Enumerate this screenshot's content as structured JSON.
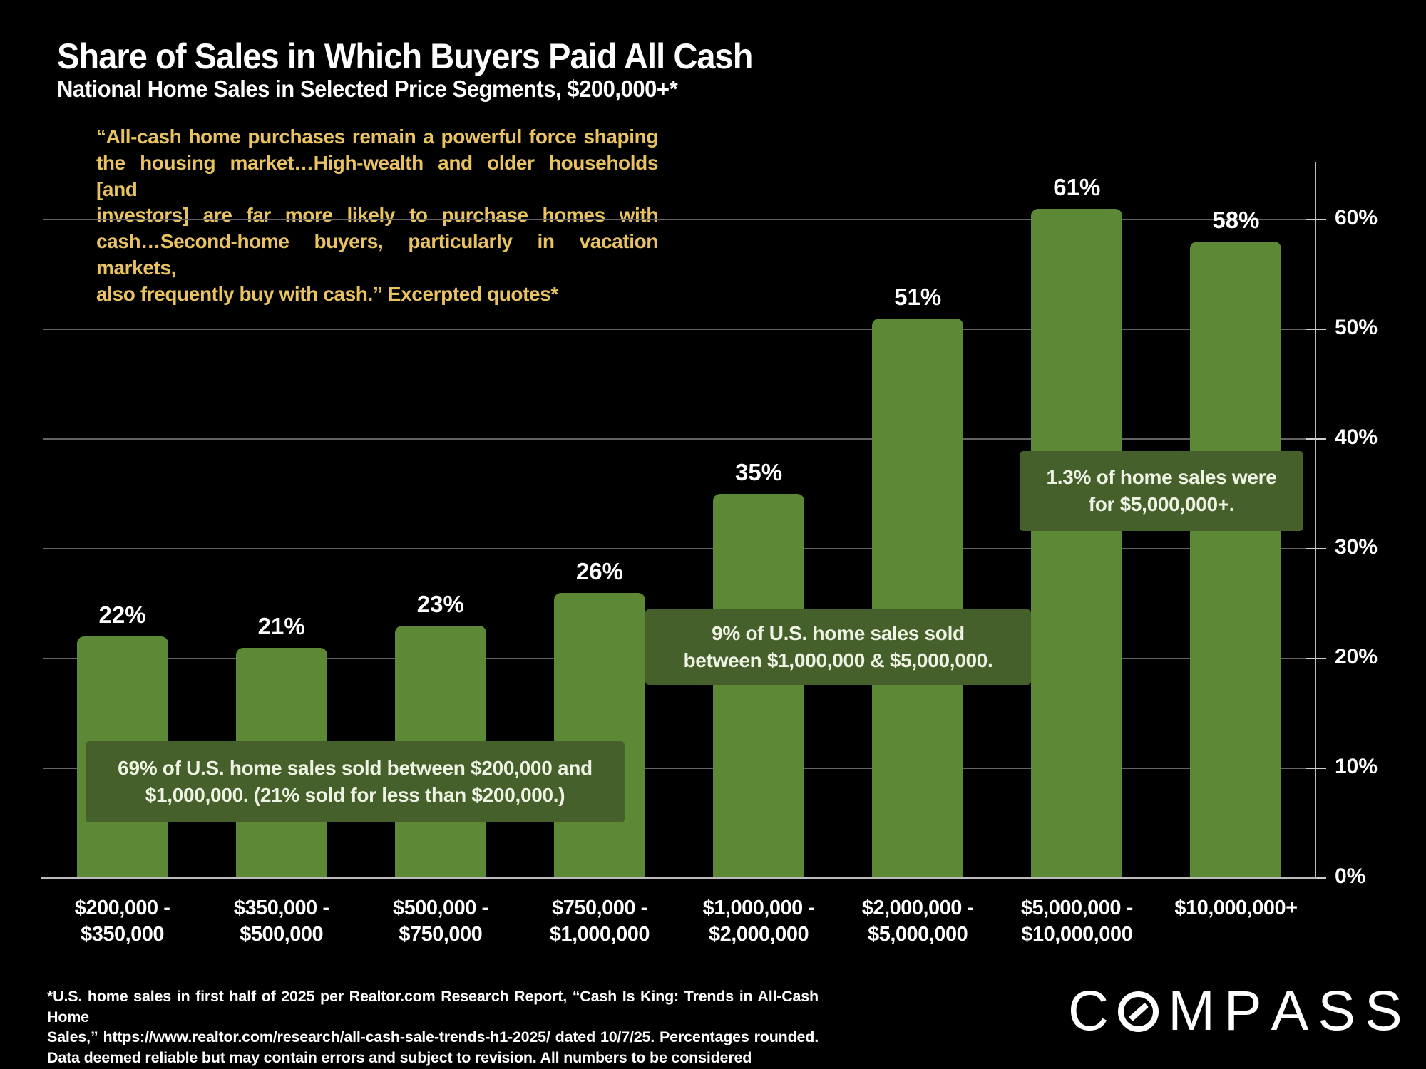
{
  "slide": {
    "title": "Share of Sales in Which Buyers Paid All Cash",
    "subtitle": "National Home Sales in Selected Price Segments, $200,000+*",
    "quote_lines": [
      "“All-cash home purchases remain a powerful force shaping",
      "the housing market…High-wealth and older households [and",
      "investors] are far more likely to purchase homes with",
      "cash…Second-home buyers, particularly in vacation markets,",
      "also frequently buy with cash.” Excerpted quotes*"
    ],
    "footnote_lines": [
      "*U.S. home sales in first half of 2025 per Realtor.com Research Report, “Cash Is King: Trends in All-Cash Home",
      "Sales,” https://www.realtor.com/research/all-cash-sale-trends-h1-2025/ dated 10/7/25. Percentages rounded.",
      "Data deemed reliable but may contain errors and subject to revision. All numbers to be considered approximate."
    ],
    "logo_text": "COMPASS"
  },
  "colors": {
    "background": "#000000",
    "bar_green": "#5d8936",
    "annotation_green": "#46602c",
    "quote_gold": "#e9c261",
    "text_white": "#fdfdfd",
    "gridline_gray": "#636363",
    "axis_gray": "#bdbdbd"
  },
  "chart_data": {
    "type": "bar",
    "title": "Share of Sales in Which Buyers Paid All Cash",
    "subtitle": "National Home Sales in Selected Price Segments, $200,000+*",
    "categories": [
      "$200,000 - $350,000",
      "$350,000 - $500,000",
      "$500,000 - $750,000",
      "$750,000 - $1,000,000",
      "$1,000,000 - $2,000,000",
      "$2,000,000 - $5,000,000",
      "$5,000,000 - $10,000,000",
      "$10,000,000+"
    ],
    "category_lines": [
      [
        "$200,000 -",
        "$350,000"
      ],
      [
        "$350,000 -",
        "$500,000"
      ],
      [
        "$500,000 -",
        "$750,000"
      ],
      [
        "$750,000 -",
        "$1,000,000"
      ],
      [
        "$1,000,000 -",
        "$2,000,000"
      ],
      [
        "$2,000,000 -",
        "$5,000,000"
      ],
      [
        "$5,000,000 -",
        "$10,000,000"
      ],
      [
        "$10,000,000+",
        ""
      ]
    ],
    "values": [
      22,
      21,
      23,
      26,
      35,
      51,
      61,
      58
    ],
    "value_labels": [
      "22%",
      "21%",
      "23%",
      "26%",
      "35%",
      "51%",
      "61%",
      "58%"
    ],
    "xlabel": "",
    "ylabel": "",
    "ylim": [
      0,
      65
    ],
    "grid": true,
    "legend": false,
    "y_axis_side": "right",
    "y_ticks": [
      {
        "value": 0,
        "label": "0%"
      },
      {
        "value": 10,
        "label": "10%"
      },
      {
        "value": 20,
        "label": "20%"
      },
      {
        "value": 30,
        "label": "30%"
      },
      {
        "value": 40,
        "label": "40%"
      },
      {
        "value": 50,
        "label": "50%"
      },
      {
        "value": 60,
        "label": "60%"
      }
    ],
    "annotations": [
      {
        "lines": [
          "69% of U.S. home sales sold between $200,000 and",
          "$1,000,000. (21% sold for less than $200,000.)"
        ]
      },
      {
        "lines": [
          "9% of U.S. home sales sold",
          "between $1,000,000 & $5,000,000."
        ]
      },
      {
        "lines": [
          "1.3% of home sales were",
          "for  $5,000,000+."
        ]
      }
    ]
  }
}
